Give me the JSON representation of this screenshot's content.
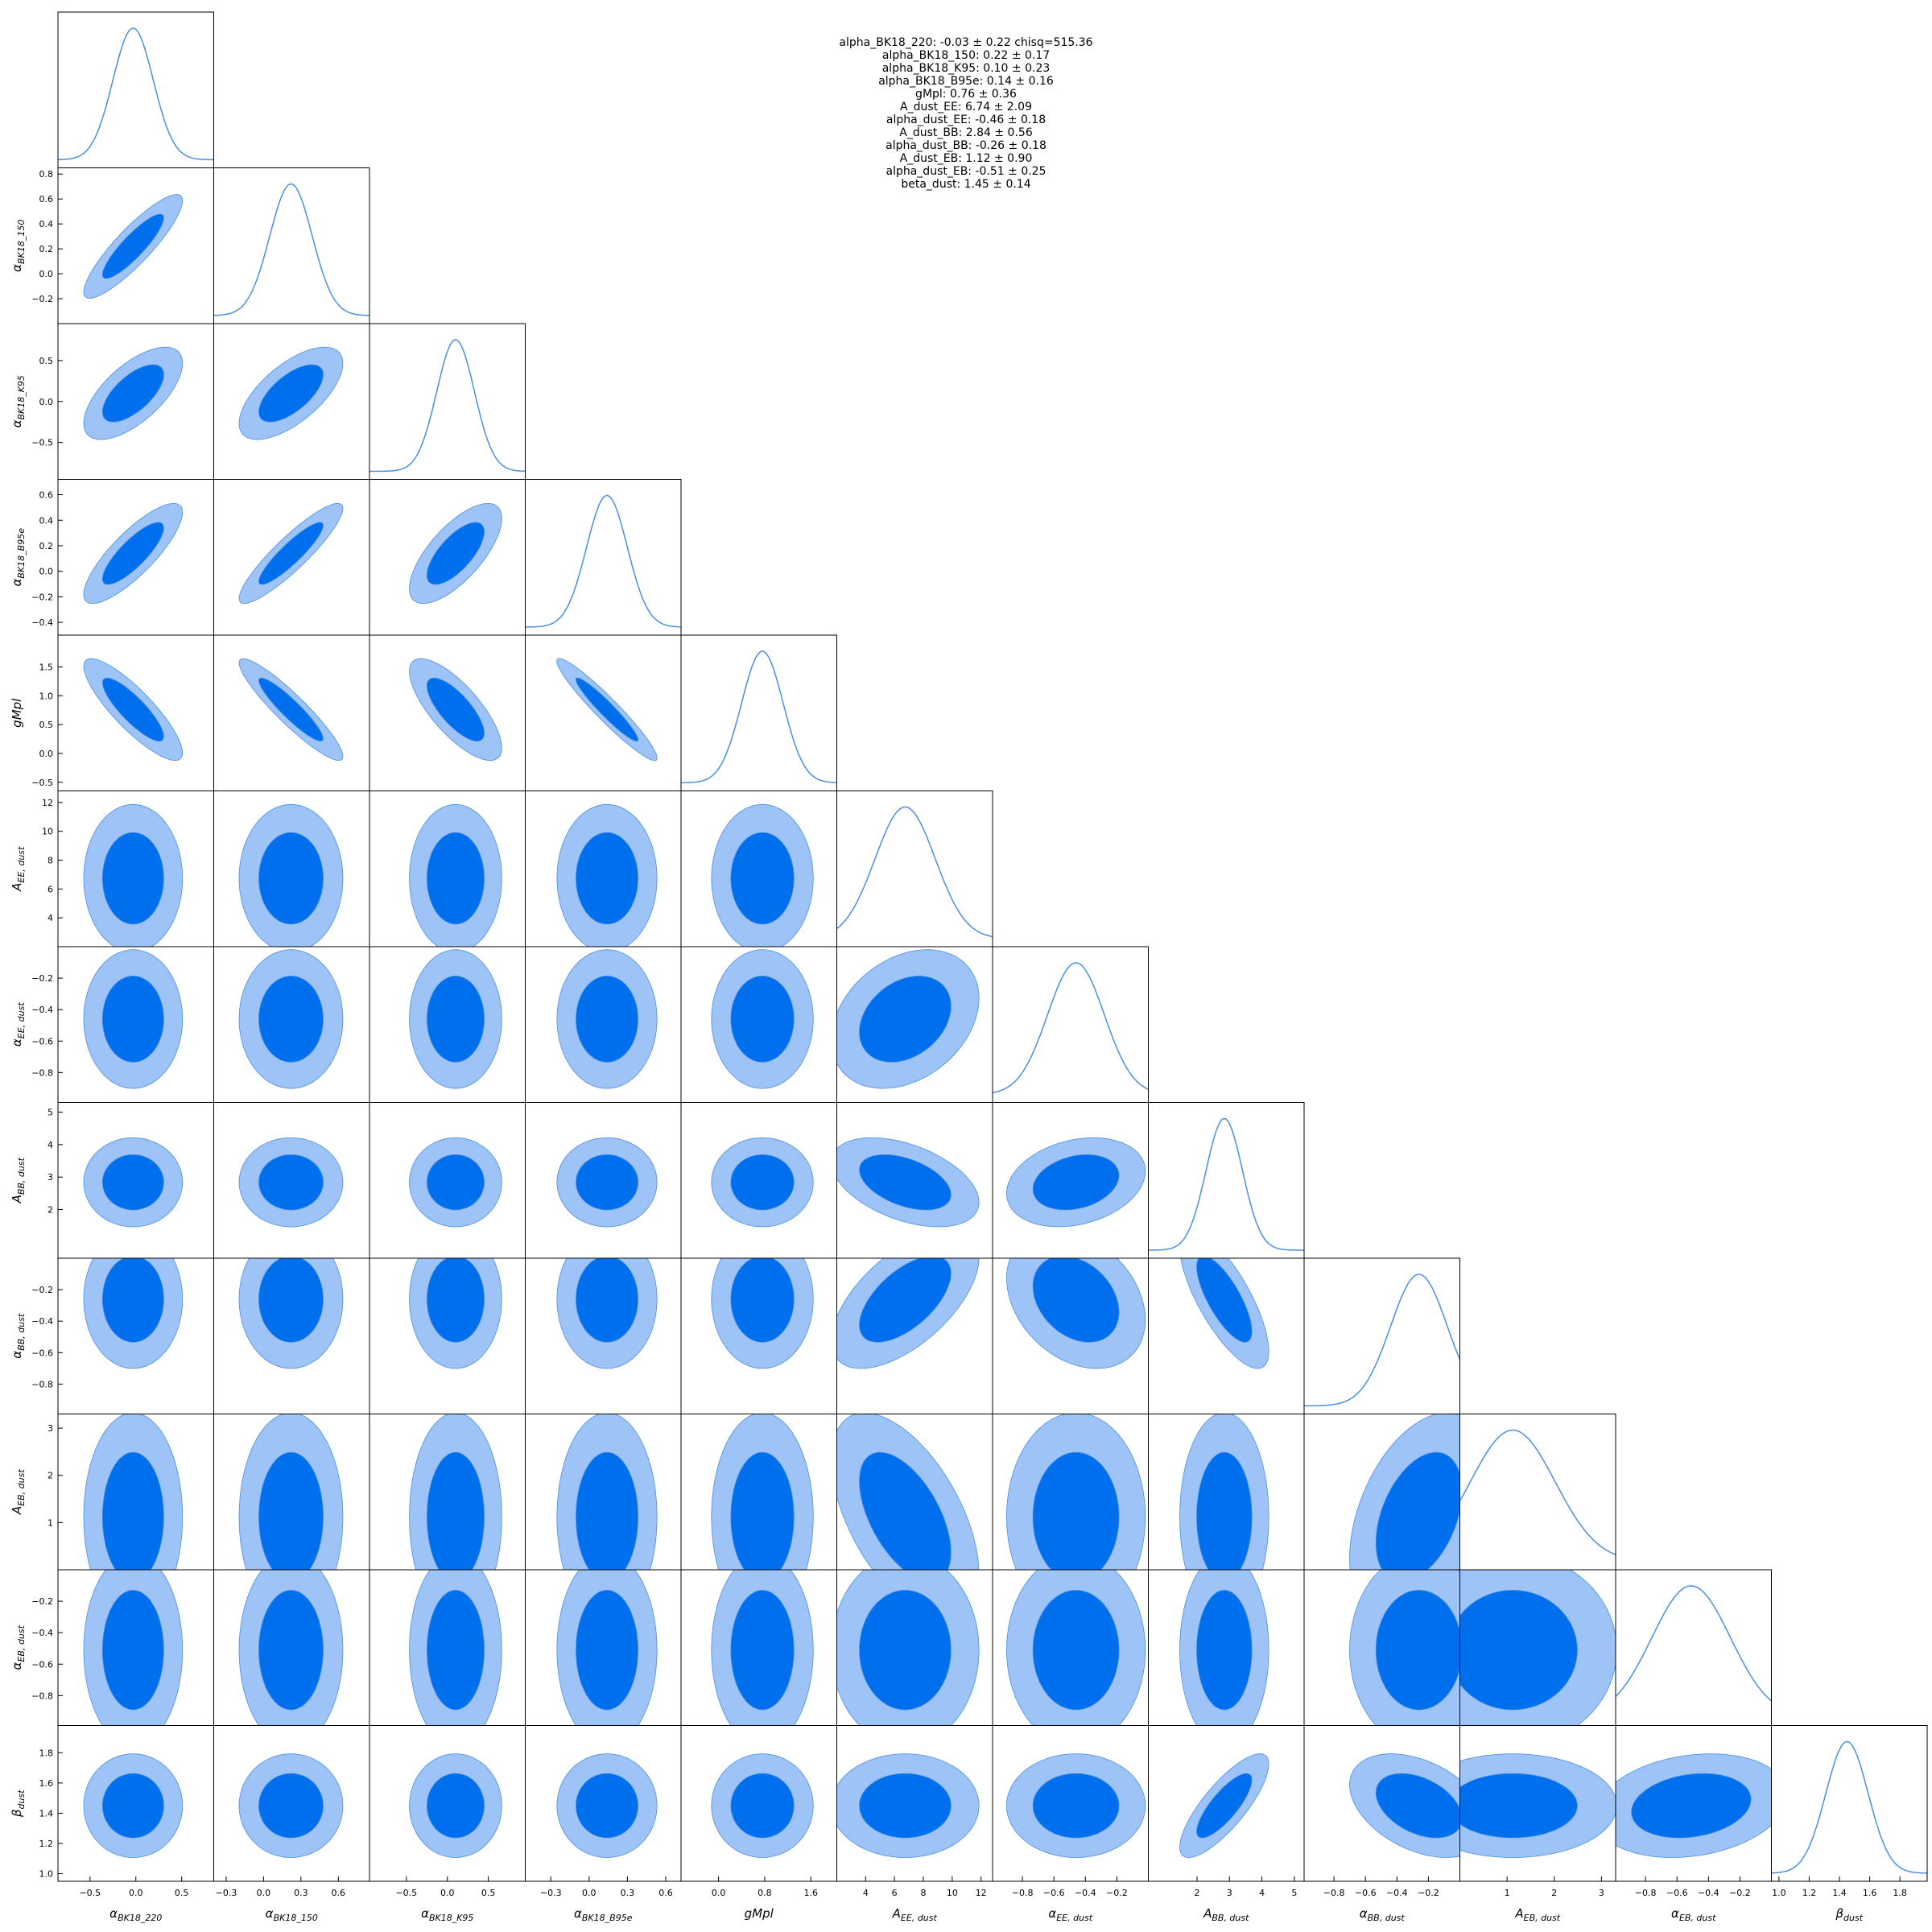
{
  "summary_lines": [
    "alpha_BK18_220: -0.03 ± 0.22 chisq=515.36",
    "alpha_BK18_150: 0.22 ± 0.17",
    "alpha_BK18_K95: 0.10 ± 0.23",
    "alpha_BK18_B95e: 0.14 ± 0.16",
    "gMpl: 0.76 ± 0.36",
    "A_dust_EE: 6.74 ± 2.09",
    "alpha_dust_EE: -0.46 ± 0.18",
    "A_dust_BB: 2.84 ± 0.56",
    "alpha_dust_BB: -0.26 ± 0.18",
    "A_dust_EB: 1.12 ± 0.90",
    "alpha_dust_EB: -0.51 ± 0.25",
    "beta_dust: 1.45 ± 0.14"
  ],
  "colors": {
    "inner": "#006FED",
    "outer": "#9DC3F7",
    "line": "#4A8FE0",
    "frame": "#000000"
  },
  "chart_data": {
    "type": "triangle-corner",
    "parameters": [
      {
        "id": "alpha_BK18_220",
        "xlabel": "α",
        "sub": "BK18_220",
        "range": [
          -0.85,
          0.85
        ],
        "ticks": [
          -0.5,
          0.0,
          0.5
        ],
        "ticklabels": [
          "−0.5",
          "0.0",
          "0.5"
        ],
        "mean": -0.03,
        "sigma": 0.22
      },
      {
        "id": "alpha_BK18_150",
        "xlabel": "α",
        "sub": "BK18_150",
        "range": [
          -0.4,
          0.85
        ],
        "ticks": [
          -0.3,
          0.0,
          0.3,
          0.6
        ],
        "ticklabels": [
          "−0.3",
          "0.0",
          "0.3",
          "0.6"
        ],
        "yticks": [
          -0.2,
          0.0,
          0.2,
          0.4,
          0.6,
          0.8
        ],
        "yticklabels": [
          "−0.2",
          "0.0",
          "0.2",
          "0.4",
          "0.6",
          "0.8"
        ],
        "mean": 0.22,
        "sigma": 0.17
      },
      {
        "id": "alpha_BK18_K95",
        "xlabel": "α",
        "sub": "BK18_K95",
        "range": [
          -0.95,
          0.95
        ],
        "ticks": [
          -0.5,
          0.0,
          0.5
        ],
        "ticklabels": [
          "−0.5",
          "0.0",
          "0.5"
        ],
        "mean": 0.1,
        "sigma": 0.23
      },
      {
        "id": "alpha_BK18_B95e",
        "xlabel": "α",
        "sub": "BK18_B95e",
        "range": [
          -0.5,
          0.72
        ],
        "ticks": [
          -0.3,
          0.0,
          0.3,
          0.6
        ],
        "ticklabels": [
          "−0.3",
          "0.0",
          "0.3",
          "0.6"
        ],
        "yticks": [
          -0.4,
          -0.2,
          0.0,
          0.2,
          0.4,
          0.6
        ],
        "yticklabels": [
          "−0.4",
          "−0.2",
          "0.0",
          "0.2",
          "0.4",
          "0.6"
        ],
        "mean": 0.14,
        "sigma": 0.16
      },
      {
        "id": "gMpl",
        "xlabel": "gMpl",
        "sub": "",
        "range": [
          -0.65,
          2.05
        ],
        "ticks": [
          0.0,
          0.8,
          1.6
        ],
        "ticklabels": [
          "0.0",
          "0.8",
          "1.6"
        ],
        "yticks": [
          -0.5,
          0.0,
          0.5,
          1.0,
          1.5
        ],
        "yticklabels": [
          "−0.5",
          "0.0",
          "0.5",
          "1.0",
          "1.5"
        ],
        "mean": 0.76,
        "sigma": 0.36
      },
      {
        "id": "A_dust_EE",
        "xlabel": "A",
        "sub": "EE, dust",
        "range": [
          2.0,
          12.8
        ],
        "ticks": [
          4,
          6,
          8,
          10,
          12
        ],
        "ticklabels": [
          "4",
          "6",
          "8",
          "10",
          "12"
        ],
        "mean": 6.74,
        "sigma": 2.09
      },
      {
        "id": "alpha_dust_EE",
        "xlabel": "α",
        "sub": "EE, dust",
        "range": [
          -0.99,
          0.0
        ],
        "ticks": [
          -0.8,
          -0.6,
          -0.4,
          -0.2
        ],
        "ticklabels": [
          "−0.8",
          "−0.6",
          "−0.4",
          "−0.2"
        ],
        "mean": -0.46,
        "sigma": 0.18
      },
      {
        "id": "A_dust_BB",
        "xlabel": "A",
        "sub": "BB, dust",
        "range": [
          0.5,
          5.3
        ],
        "ticks": [
          2,
          3,
          4,
          5
        ],
        "ticklabels": [
          "2",
          "3",
          "4",
          "5"
        ],
        "yticks": [
          2,
          3,
          4,
          5
        ],
        "yticklabels": [
          "2",
          "3",
          "4",
          "5"
        ],
        "mean": 2.84,
        "sigma": 0.56
      },
      {
        "id": "alpha_dust_BB",
        "xlabel": "α",
        "sub": "BB, dust",
        "range": [
          -0.99,
          0.0
        ],
        "ticks": [
          -0.8,
          -0.6,
          -0.4,
          -0.2
        ],
        "ticklabels": [
          "−0.8",
          "−0.6",
          "−0.4",
          "−0.2"
        ],
        "mean": -0.26,
        "sigma": 0.18
      },
      {
        "id": "A_dust_EB",
        "xlabel": "A",
        "sub": "EB, dust",
        "range": [
          0.0,
          3.3
        ],
        "ticks": [
          1,
          2,
          3
        ],
        "ticklabels": [
          "1",
          "2",
          "3"
        ],
        "mean": 1.12,
        "sigma": 0.9
      },
      {
        "id": "alpha_dust_EB",
        "xlabel": "α",
        "sub": "EB, dust",
        "range": [
          -0.99,
          0.0
        ],
        "ticks": [
          -0.8,
          -0.6,
          -0.4,
          -0.2
        ],
        "ticklabels": [
          "−0.8",
          "−0.6",
          "−0.4",
          "−0.2"
        ],
        "mean": -0.51,
        "sigma": 0.25
      },
      {
        "id": "beta_dust",
        "xlabel": "β",
        "sub": "dust",
        "range": [
          0.95,
          1.98
        ],
        "ticks": [
          1.0,
          1.2,
          1.4,
          1.6,
          1.8
        ],
        "ticklabels": [
          "1.0",
          "1.2",
          "1.4",
          "1.6",
          "1.8"
        ],
        "mean": 1.45,
        "sigma": 0.14
      }
    ],
    "y_axis_labels": [
      {
        "row": 1,
        "base": "α",
        "sub": "BK18_150"
      },
      {
        "row": 2,
        "base": "α",
        "sub": "BK18_K95"
      },
      {
        "row": 3,
        "base": "α",
        "sub": "BK18_B95e"
      },
      {
        "row": 4,
        "base": "gMpl",
        "sub": ""
      },
      {
        "row": 5,
        "base": "A",
        "sub": "EE, dust"
      },
      {
        "row": 6,
        "base": "α",
        "sub": "EE, dust"
      },
      {
        "row": 7,
        "base": "A",
        "sub": "BB, dust"
      },
      {
        "row": 8,
        "base": "α",
        "sub": "BB, dust"
      },
      {
        "row": 9,
        "base": "A",
        "sub": "EB, dust"
      },
      {
        "row": 10,
        "base": "α",
        "sub": "EB, dust"
      },
      {
        "row": 11,
        "base": "β",
        "sub": "dust"
      }
    ],
    "correlations": {
      "1-0": 0.88,
      "2-0": 0.65,
      "2-1": 0.65,
      "3-0": 0.82,
      "3-1": 0.9,
      "3-2": 0.7,
      "4-0": -0.85,
      "4-1": -0.92,
      "4-2": -0.75,
      "4-3": -0.96,
      "6-5": 0.3,
      "7-5": -0.45,
      "7-6": 0.25,
      "8-5": 0.6,
      "8-6": -0.3,
      "8-7": -0.75,
      "9-5": -0.55,
      "9-8": 0.4,
      "11-7": 0.8,
      "11-8": -0.4,
      "11-10": 0.2
    },
    "contour_levels": [
      "68%",
      "95%"
    ]
  }
}
